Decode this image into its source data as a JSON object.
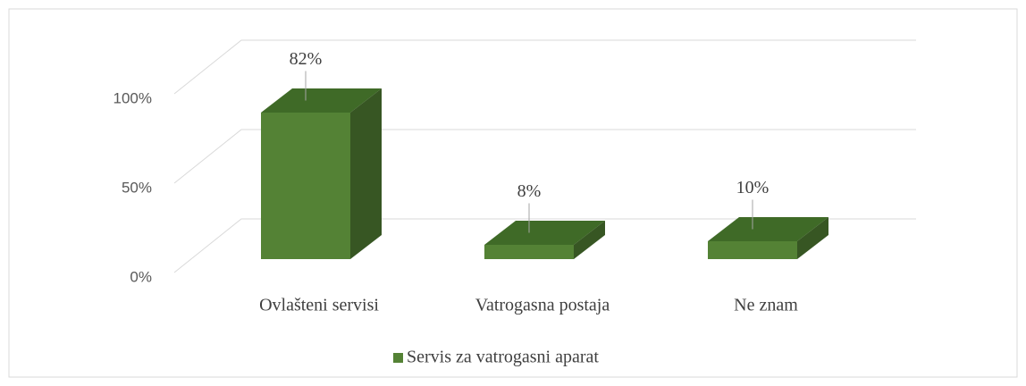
{
  "chart_data": {
    "type": "bar3d",
    "categories": [
      "Ovlašteni servisi",
      "Vatrogasna postaja",
      "Ne znam"
    ],
    "series": [
      {
        "name": "Servis za vatrogasni aparat",
        "color": "#548235",
        "values": [
          82,
          8,
          10
        ],
        "value_labels": [
          "82%",
          "8%",
          "10%"
        ]
      }
    ],
    "ylim": [
      0,
      100
    ],
    "yticks": [
      {
        "value": 0,
        "label": "0%"
      },
      {
        "value": 50,
        "label": "50%"
      },
      {
        "value": 100,
        "label": "100%"
      }
    ],
    "grid": true,
    "legend": "bottom"
  }
}
